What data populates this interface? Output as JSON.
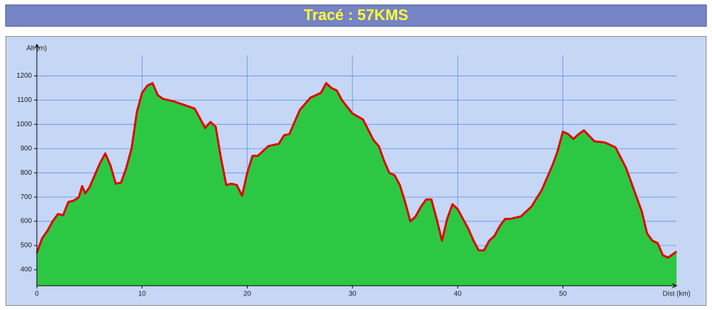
{
  "chart_data": {
    "type": "area",
    "title": "Tracé : 57KMS",
    "xlabel": "Dist (km)",
    "ylabel": "Alt (m)",
    "x": [
      0,
      0.5,
      1,
      1.5,
      2,
      2.5,
      3,
      3.5,
      4,
      4.3,
      4.6,
      5,
      5.5,
      6,
      6.5,
      7,
      7.5,
      8,
      8.5,
      9,
      9.5,
      10,
      10.5,
      11,
      11.5,
      12,
      13,
      14,
      15,
      16,
      16.5,
      17,
      17.5,
      18,
      18.5,
      19,
      19.5,
      20,
      20.5,
      21,
      22,
      23,
      23.5,
      24,
      25,
      26,
      27,
      27.5,
      28,
      28.5,
      29,
      30,
      31,
      32,
      32.5,
      33,
      33.5,
      34,
      34.5,
      35,
      35.5,
      36,
      36.5,
      37,
      37.5,
      38,
      38.5,
      39,
      39.5,
      40,
      40.5,
      41,
      41.5,
      42,
      42.5,
      43,
      43.5,
      44,
      44.5,
      45,
      46,
      47,
      48,
      49,
      49.5,
      50,
      50.5,
      51,
      51.5,
      52,
      53,
      54,
      55,
      56,
      57,
      57.5,
      58,
      58.5,
      59,
      59.5,
      60,
      60.8
    ],
    "values": [
      470,
      530,
      560,
      600,
      630,
      625,
      680,
      685,
      700,
      745,
      715,
      740,
      790,
      840,
      880,
      830,
      755,
      760,
      820,
      900,
      1050,
      1130,
      1160,
      1170,
      1120,
      1105,
      1095,
      1080,
      1065,
      985,
      1010,
      990,
      860,
      750,
      755,
      750,
      705,
      800,
      870,
      870,
      910,
      920,
      955,
      960,
      1060,
      1110,
      1130,
      1170,
      1150,
      1140,
      1100,
      1045,
      1020,
      935,
      910,
      850,
      800,
      790,
      750,
      680,
      600,
      620,
      660,
      690,
      690,
      610,
      520,
      610,
      670,
      650,
      610,
      570,
      520,
      480,
      480,
      520,
      540,
      580,
      610,
      610,
      620,
      660,
      730,
      830,
      890,
      970,
      960,
      940,
      960,
      975,
      930,
      925,
      905,
      820,
      700,
      640,
      550,
      520,
      510,
      460,
      450,
      475
    ],
    "color": "#e00000",
    "fill_color": "#2cc844",
    "xlim": [
      0,
      60.8
    ],
    "ylim": [
      334,
      1330
    ],
    "xticks": [
      0,
      10,
      20,
      30,
      40,
      50
    ],
    "yticks": [
      400,
      500,
      600,
      700,
      800,
      900,
      1000,
      1100,
      1200
    ],
    "grid": true
  }
}
